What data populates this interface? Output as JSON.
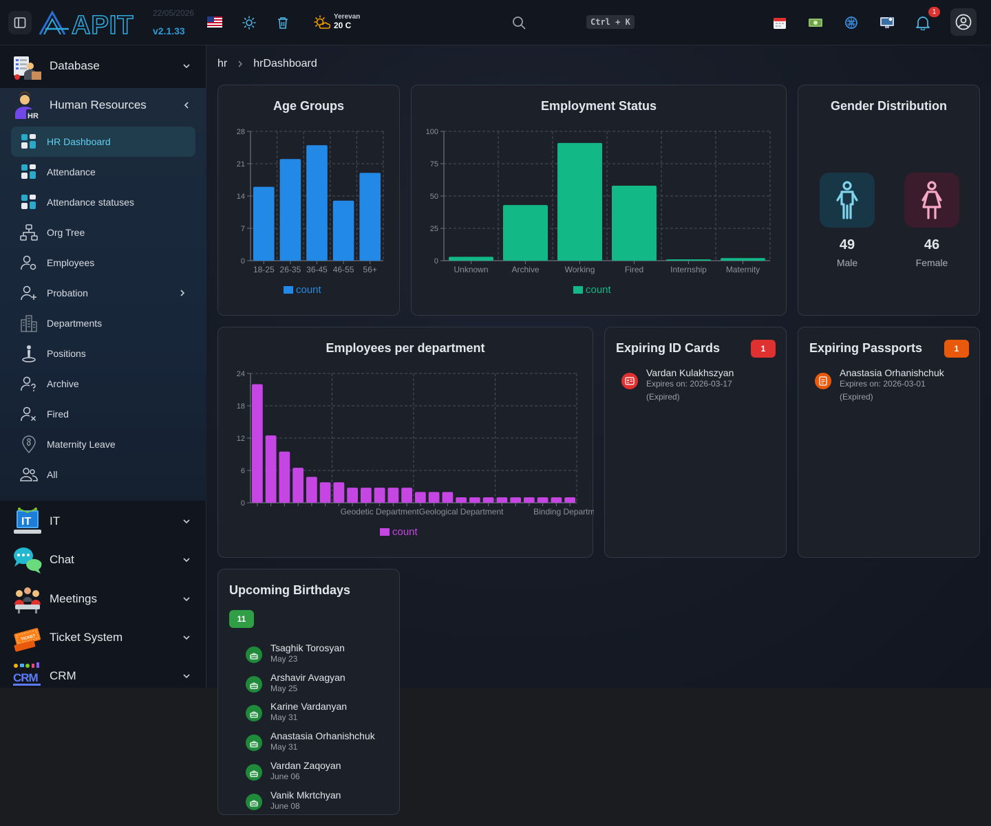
{
  "header": {
    "logo_text": "APIT",
    "date": "22/05/2026",
    "version": "v2.1.33",
    "weather_city": "Yerevan",
    "weather_temp": "20 C",
    "search_shortcut": "Ctrl + K",
    "notification_count": "1"
  },
  "sidebar": {
    "groups": {
      "database": "Database",
      "hr": "Human Resources",
      "it": "IT",
      "chat": "Chat",
      "meetings": "Meetings",
      "ticket": "Ticket System",
      "crm": "CRM"
    },
    "hr_items": [
      {
        "label": "HR Dashboard",
        "icon": "dashboard-icon"
      },
      {
        "label": "Attendance",
        "icon": "dashboard-icon"
      },
      {
        "label": "Attendance statuses",
        "icon": "dashboard-icon"
      },
      {
        "label": "Org Tree",
        "icon": "org-tree-icon"
      },
      {
        "label": "Employees",
        "icon": "user-gear-icon"
      },
      {
        "label": "Probation",
        "icon": "user-plus-icon"
      },
      {
        "label": "Departments",
        "icon": "building-icon"
      },
      {
        "label": "Positions",
        "icon": "position-icon"
      },
      {
        "label": "Archive",
        "icon": "user-question-icon"
      },
      {
        "label": "Fired",
        "icon": "user-x-icon"
      },
      {
        "label": "Maternity Leave",
        "icon": "maternity-icon"
      },
      {
        "label": "All",
        "icon": "users-icon"
      }
    ]
  },
  "breadcrumb": {
    "root": "hr",
    "current": "hrDashboard"
  },
  "cards": {
    "age_groups": "Age Groups",
    "employment_status": "Employment Status",
    "gender": "Gender Distribution",
    "per_department": "Employees per department",
    "expiring_id": "Expiring ID Cards",
    "expiring_passports": "Expiring Passports",
    "birthdays": "Upcoming Birthdays"
  },
  "gender": {
    "male_count": "49",
    "male_label": "Male",
    "female_count": "46",
    "female_label": "Female"
  },
  "expiring_id": {
    "count": "1",
    "items": [
      {
        "name": "Vardan Kulakhszyan",
        "expires": "Expires on: 2026-03-17",
        "status": "(Expired)"
      }
    ]
  },
  "expiring_passports": {
    "count": "1",
    "items": [
      {
        "name": "Anastasia Orhanishchuk",
        "expires": "Expires on: 2026-03-01",
        "status": "(Expired)"
      }
    ]
  },
  "birthdays": {
    "count": "11",
    "items": [
      {
        "name": "Tsaghik Torosyan",
        "date": "May 23"
      },
      {
        "name": "Arshavir Avagyan",
        "date": "May 25"
      },
      {
        "name": "Karine Vardanyan",
        "date": "May 31"
      },
      {
        "name": "Anastasia Orhanishchuk",
        "date": "May 31"
      },
      {
        "name": "Vardan Zaqoyan",
        "date": "June 06"
      },
      {
        "name": "Vanik Mkrtchyan",
        "date": "June 08"
      }
    ]
  },
  "colors": {
    "age": "#2389e6",
    "employment": "#12b886",
    "department": "#c546e3",
    "male_bg": "#173746",
    "female_bg": "#3b1c2c",
    "id_badge": "#e03131",
    "passport_badge": "#e8590c"
  },
  "chart_data": [
    {
      "type": "bar",
      "title": "Age Groups",
      "categories": [
        "18-25",
        "26-35",
        "36-45",
        "46-55",
        "56+"
      ],
      "series": [
        {
          "name": "count",
          "values": [
            16,
            22,
            25,
            13,
            19
          ]
        }
      ],
      "ylim": [
        0,
        28
      ],
      "yticks": [
        0,
        7,
        14,
        21,
        28
      ],
      "grid": true,
      "legend": "bottom"
    },
    {
      "type": "bar",
      "title": "Employment Status",
      "categories": [
        "Unknown",
        "Archive",
        "Working",
        "Fired",
        "Internship",
        "Maternity"
      ],
      "series": [
        {
          "name": "count",
          "values": [
            3,
            43,
            91,
            58,
            1,
            2
          ]
        }
      ],
      "ylim": [
        0,
        100
      ],
      "yticks": [
        0,
        25,
        50,
        75,
        100
      ],
      "grid": true,
      "legend": "bottom"
    },
    {
      "type": "bar",
      "title": "Employees per department",
      "categories": [
        "",
        "",
        "",
        "",
        "",
        "",
        "",
        "",
        "",
        "Geodetic Department",
        "",
        "",
        "",
        "",
        "",
        "Geological Department",
        "",
        "",
        "",
        "",
        "",
        "",
        "",
        "Binding Department"
      ],
      "series": [
        {
          "name": "count",
          "values": [
            22,
            12.5,
            9.5,
            6.5,
            4.8,
            3.8,
            3.8,
            2.8,
            2.8,
            2.8,
            2.8,
            2.8,
            2,
            2,
            2,
            1,
            1,
            1,
            1,
            1,
            1,
            1,
            1,
            1
          ]
        }
      ],
      "ylim": [
        0,
        24
      ],
      "yticks": [
        0,
        6,
        12,
        18,
        24
      ],
      "grid": true,
      "legend": "bottom"
    }
  ]
}
